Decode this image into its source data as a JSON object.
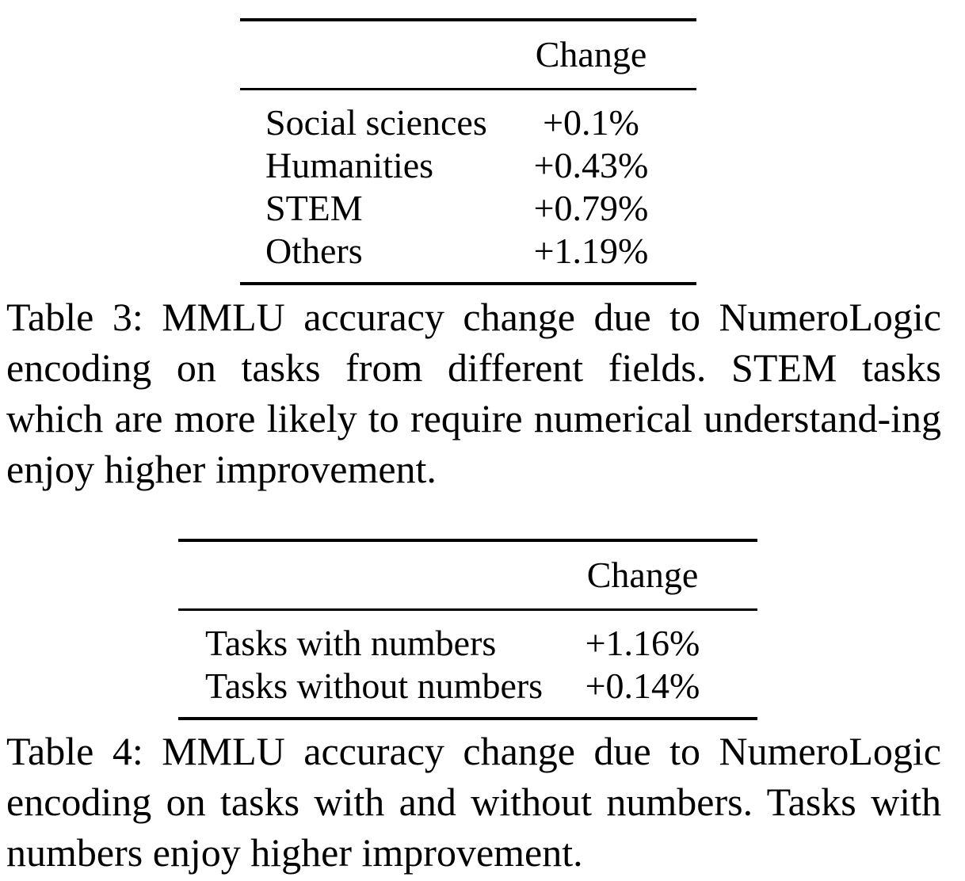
{
  "table3": {
    "header": [
      "",
      "Change"
    ],
    "rows": [
      {
        "label": "Social sciences",
        "value": "+0.1%"
      },
      {
        "label": "Humanities",
        "value": "+0.43%"
      },
      {
        "label": "STEM",
        "value": "+0.79%"
      },
      {
        "label": "Others",
        "value": "+1.19%"
      }
    ],
    "caption": "Table 3: MMLU accuracy change due to NumeroLogic encoding on tasks from different fields. STEM tasks which are more likely to require numerical understand-ing enjoy higher improvement."
  },
  "table4": {
    "header": [
      "",
      "Change"
    ],
    "rows": [
      {
        "label": "Tasks with numbers",
        "value": "+1.16%"
      },
      {
        "label": "Tasks without numbers",
        "value": "+0.14%"
      }
    ],
    "caption": "Table 4: MMLU accuracy change due to NumeroLogic encoding on tasks with and without numbers. Tasks with numbers enjoy higher improvement."
  }
}
